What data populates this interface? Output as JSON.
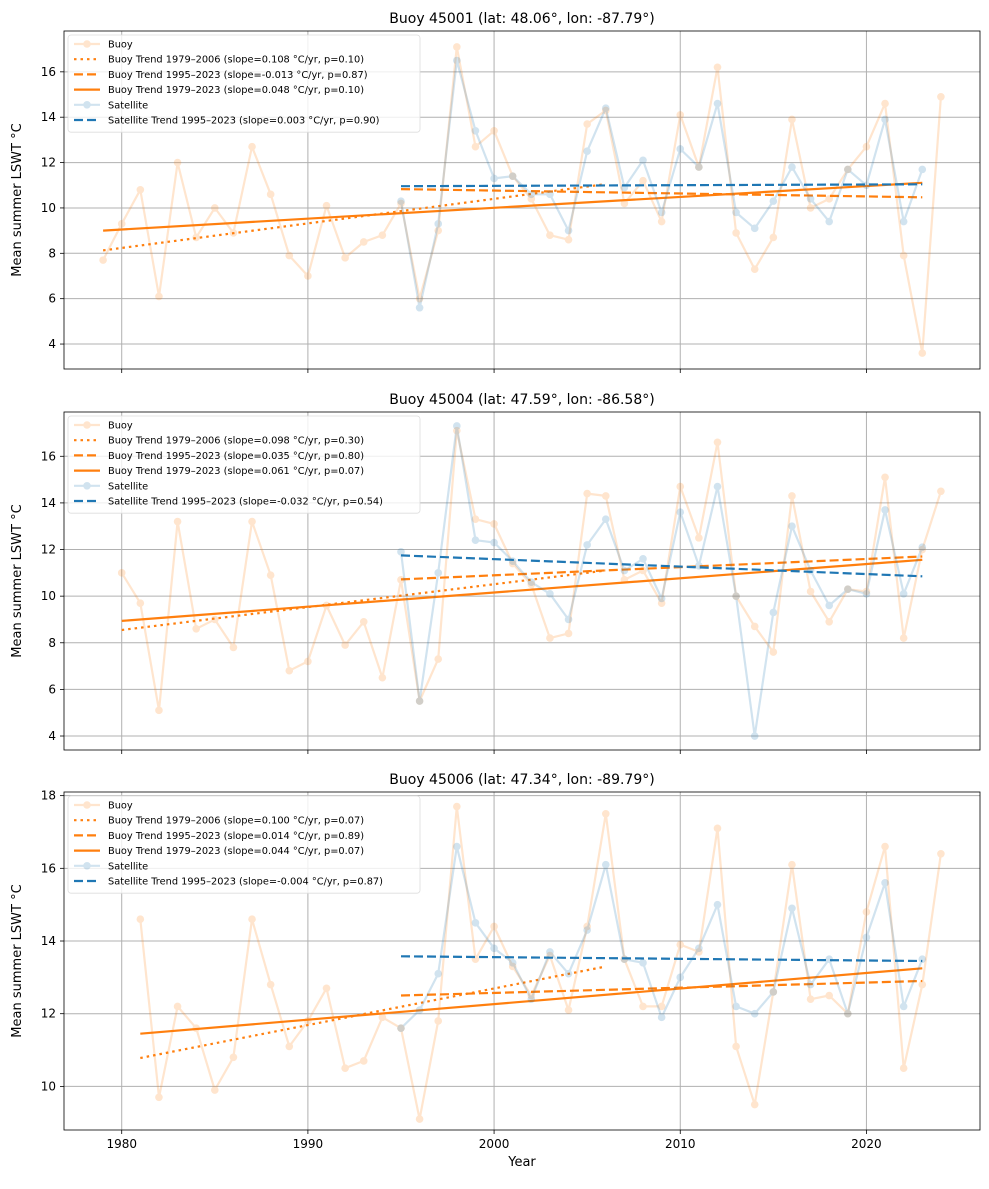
{
  "figure": {
    "shared_xlabel": "Year",
    "ylabel": "Mean summer LSWT °C",
    "x_ticks": [
      1980,
      1990,
      2000,
      2010,
      2020
    ],
    "xlim": [
      1976.9,
      2026.1
    ]
  },
  "colors": {
    "buoy": "#ff7f0e",
    "satellite": "#1f77b4",
    "grid": "#b0b0b0",
    "axes": "#000000"
  },
  "chart_data": [
    {
      "type": "line",
      "title": "Buoy 45001 (lat: 48.06°, lon: -87.79°)",
      "ylabel": "Mean summer LSWT °C",
      "xlabel": "",
      "grid": true,
      "legend_position": "top-left",
      "ylim": [
        2.9,
        17.8
      ],
      "y_ticks": [
        4,
        6,
        8,
        10,
        12,
        14,
        16
      ],
      "series": [
        {
          "name": "Buoy",
          "kind": "data",
          "color": "#ff7f0e",
          "x": [
            1979,
            1980,
            1981,
            1982,
            1983,
            1984,
            1985,
            1986,
            1987,
            1988,
            1989,
            1990,
            1991,
            1992,
            1993,
            1994,
            1995,
            1996,
            1997,
            1998,
            1999,
            2000,
            2001,
            2002,
            2003,
            2004,
            2005,
            2006,
            2007,
            2008,
            2009,
            2010,
            2011,
            2012,
            2013,
            2014,
            2015,
            2016,
            2017,
            2018,
            2019,
            2020,
            2021,
            2022,
            2023,
            2024
          ],
          "y": [
            7.7,
            9.3,
            10.8,
            6.1,
            12.0,
            8.7,
            10.0,
            8.9,
            12.7,
            10.6,
            7.9,
            7.0,
            10.1,
            7.8,
            8.5,
            8.8,
            10.2,
            6.0,
            9.0,
            17.1,
            12.7,
            13.4,
            11.4,
            10.4,
            8.8,
            8.6,
            13.7,
            14.3,
            10.2,
            11.2,
            9.4,
            14.1,
            11.8,
            16.2,
            8.9,
            7.3,
            8.7,
            13.9,
            10.0,
            10.4,
            11.7,
            12.7,
            14.6,
            7.9,
            3.6,
            14.9
          ]
        },
        {
          "name": "Buoy Trend 1979–2006 (slope=0.108 °C/yr, p=0.10)",
          "kind": "trend",
          "style": "dotted",
          "color": "#ff7f0e",
          "x": [
            1979,
            2006
          ],
          "y": [
            8.13,
            11.05
          ]
        },
        {
          "name": "Buoy Trend 1995–2023 (slope=-0.013 °C/yr, p=0.87)",
          "kind": "trend",
          "style": "dashed",
          "color": "#ff7f0e",
          "x": [
            1995,
            2023
          ],
          "y": [
            10.83,
            10.47
          ]
        },
        {
          "name": "Buoy Trend 1979–2023 (slope=0.048 °C/yr, p=0.10)",
          "kind": "trend",
          "style": "solid",
          "color": "#ff7f0e",
          "x": [
            1979,
            2023
          ],
          "y": [
            9.0,
            11.11
          ]
        },
        {
          "name": "Satellite",
          "kind": "data",
          "color": "#1f77b4",
          "x": [
            1995,
            1996,
            1997,
            1998,
            1999,
            2000,
            2001,
            2002,
            2003,
            2004,
            2005,
            2006,
            2007,
            2008,
            2009,
            2010,
            2011,
            2012,
            2013,
            2014,
            2015,
            2016,
            2017,
            2018,
            2019,
            2020,
            2021,
            2022,
            2023
          ],
          "y": [
            10.3,
            5.6,
            9.3,
            16.5,
            13.4,
            11.3,
            11.4,
            10.6,
            10.6,
            9.0,
            12.5,
            14.4,
            10.9,
            12.1,
            9.8,
            12.6,
            11.8,
            14.6,
            9.8,
            9.1,
            10.3,
            11.8,
            10.4,
            9.4,
            11.7,
            11.0,
            13.9,
            9.4,
            11.7
          ]
        },
        {
          "name": "Satellite Trend 1995–2023 (slope=0.003 °C/yr, p=0.90)",
          "kind": "trend",
          "style": "dashed",
          "color": "#1f77b4",
          "x": [
            1995,
            2023
          ],
          "y": [
            10.96,
            11.04
          ]
        }
      ]
    },
    {
      "type": "line",
      "title": "Buoy 45004 (lat: 47.59°, lon: -86.58°)",
      "ylabel": "Mean summer LSWT °C",
      "xlabel": "",
      "grid": true,
      "legend_position": "top-left",
      "ylim": [
        3.4,
        17.9
      ],
      "y_ticks": [
        4,
        6,
        8,
        10,
        12,
        14,
        16
      ],
      "series": [
        {
          "name": "Buoy",
          "kind": "data",
          "color": "#ff7f0e",
          "x": [
            1980,
            1981,
            1982,
            1983,
            1984,
            1985,
            1986,
            1987,
            1988,
            1989,
            1990,
            1991,
            1992,
            1993,
            1994,
            1995,
            1996,
            1997,
            1998,
            1999,
            2000,
            2001,
            2002,
            2003,
            2004,
            2005,
            2006,
            2007,
            2008,
            2009,
            2010,
            2011,
            2012,
            2013,
            2014,
            2015,
            2016,
            2017,
            2018,
            2019,
            2020,
            2021,
            2022,
            2023,
            2024
          ],
          "y": [
            11.0,
            9.7,
            5.1,
            13.2,
            8.6,
            9.0,
            7.8,
            13.2,
            10.9,
            6.8,
            7.2,
            9.6,
            7.9,
            8.9,
            6.5,
            10.7,
            5.5,
            7.3,
            17.1,
            13.3,
            13.1,
            11.4,
            10.5,
            8.2,
            8.4,
            14.4,
            14.3,
            10.7,
            11.1,
            9.7,
            14.7,
            12.5,
            16.6,
            10.0,
            8.7,
            7.6,
            14.3,
            10.2,
            8.9,
            10.3,
            10.2,
            15.1,
            8.2,
            12.0,
            14.5
          ]
        },
        {
          "name": "Buoy Trend 1979–2006 (slope=0.098 °C/yr, p=0.30)",
          "kind": "trend",
          "style": "dotted",
          "color": "#ff7f0e",
          "x": [
            1980,
            2006
          ],
          "y": [
            8.55,
            11.1
          ]
        },
        {
          "name": "Buoy Trend 1995–2023 (slope=0.035 °C/yr, p=0.80)",
          "kind": "trend",
          "style": "dashed",
          "color": "#ff7f0e",
          "x": [
            1995,
            2023
          ],
          "y": [
            10.72,
            11.7
          ]
        },
        {
          "name": "Buoy Trend 1979–2023 (slope=0.061 °C/yr, p=0.07)",
          "kind": "trend",
          "style": "solid",
          "color": "#ff7f0e",
          "x": [
            1980,
            2023
          ],
          "y": [
            8.94,
            11.56
          ]
        },
        {
          "name": "Satellite",
          "kind": "data",
          "color": "#1f77b4",
          "x": [
            1995,
            1996,
            1997,
            1998,
            1999,
            2000,
            2001,
            2002,
            2003,
            2004,
            2005,
            2006,
            2007,
            2008,
            2009,
            2010,
            2011,
            2012,
            2013,
            2014,
            2015,
            2016,
            2017,
            2018,
            2019,
            2020,
            2021,
            2022,
            2023
          ],
          "y": [
            11.9,
            5.5,
            11.0,
            17.3,
            12.4,
            12.3,
            11.5,
            10.6,
            10.1,
            9.0,
            12.2,
            13.3,
            11.1,
            11.6,
            9.9,
            13.6,
            11.3,
            14.7,
            10.0,
            4.0,
            9.3,
            13.0,
            11.1,
            9.6,
            10.3,
            10.1,
            13.7,
            10.1,
            12.1
          ]
        },
        {
          "name": "Satellite Trend 1995–2023 (slope=-0.032 °C/yr, p=0.54)",
          "kind": "trend",
          "style": "dashed",
          "color": "#1f77b4",
          "x": [
            1995,
            2023
          ],
          "y": [
            11.75,
            10.85
          ]
        }
      ]
    },
    {
      "type": "line",
      "title": "Buoy 45006 (lat: 47.34°, lon: -89.79°)",
      "ylabel": "Mean summer LSWT °C",
      "xlabel": "Year",
      "grid": true,
      "legend_position": "top-left",
      "ylim": [
        8.8,
        18.1
      ],
      "y_ticks": [
        10,
        12,
        14,
        16,
        18
      ],
      "series": [
        {
          "name": "Buoy",
          "kind": "data",
          "color": "#ff7f0e",
          "x": [
            1981,
            1982,
            1983,
            1984,
            1985,
            1986,
            1987,
            1988,
            1989,
            1990,
            1991,
            1992,
            1993,
            1994,
            1995,
            1996,
            1997,
            1998,
            1999,
            2000,
            2001,
            2002,
            2003,
            2004,
            2005,
            2006,
            2007,
            2008,
            2009,
            2010,
            2011,
            2012,
            2013,
            2014,
            2015,
            2016,
            2017,
            2018,
            2019,
            2020,
            2021,
            2022,
            2023,
            2024
          ],
          "y": [
            14.6,
            9.7,
            12.2,
            11.6,
            9.9,
            10.8,
            14.6,
            12.8,
            11.1,
            11.8,
            12.7,
            10.5,
            10.7,
            11.9,
            11.6,
            9.1,
            11.8,
            17.7,
            13.5,
            14.4,
            13.3,
            12.5,
            13.6,
            12.1,
            14.4,
            17.5,
            13.5,
            12.2,
            12.2,
            13.9,
            13.7,
            17.1,
            11.1,
            9.5,
            12.6,
            16.1,
            12.4,
            12.5,
            12.0,
            14.8,
            16.6,
            10.5,
            12.8,
            16.4
          ]
        },
        {
          "name": "Buoy Trend 1979–2006 (slope=0.100 °C/yr, p=0.07)",
          "kind": "trend",
          "style": "dotted",
          "color": "#ff7f0e",
          "x": [
            1981,
            2006
          ],
          "y": [
            10.78,
            13.3
          ]
        },
        {
          "name": "Buoy Trend 1995–2023 (slope=0.014 °C/yr, p=0.89)",
          "kind": "trend",
          "style": "dashed",
          "color": "#ff7f0e",
          "x": [
            1995,
            2023
          ],
          "y": [
            12.5,
            12.9
          ]
        },
        {
          "name": "Buoy Trend 1979–2023 (slope=0.044 °C/yr, p=0.07)",
          "kind": "trend",
          "style": "solid",
          "color": "#ff7f0e",
          "x": [
            1981,
            2023
          ],
          "y": [
            11.45,
            13.25
          ]
        },
        {
          "name": "Satellite",
          "kind": "data",
          "color": "#1f77b4",
          "x": [
            1995,
            1996,
            1997,
            1998,
            1999,
            2000,
            2001,
            2002,
            2003,
            2004,
            2005,
            2006,
            2007,
            2008,
            2009,
            2010,
            2011,
            2012,
            2013,
            2014,
            2015,
            2016,
            2017,
            2018,
            2019,
            2020,
            2021,
            2022,
            2023
          ],
          "y": [
            11.6,
            12.1,
            13.1,
            16.6,
            14.5,
            13.8,
            13.4,
            12.4,
            13.7,
            13.1,
            14.3,
            16.1,
            13.5,
            13.4,
            11.9,
            13.0,
            13.8,
            15.0,
            12.2,
            12.0,
            12.6,
            14.9,
            12.8,
            13.5,
            12.0,
            14.1,
            15.6,
            12.2,
            13.5
          ]
        },
        {
          "name": "Satellite Trend 1995–2023 (slope=-0.004 °C/yr, p=0.87)",
          "kind": "trend",
          "style": "dashed",
          "color": "#1f77b4",
          "x": [
            1995,
            2023
          ],
          "y": [
            13.58,
            13.45
          ]
        }
      ]
    }
  ]
}
